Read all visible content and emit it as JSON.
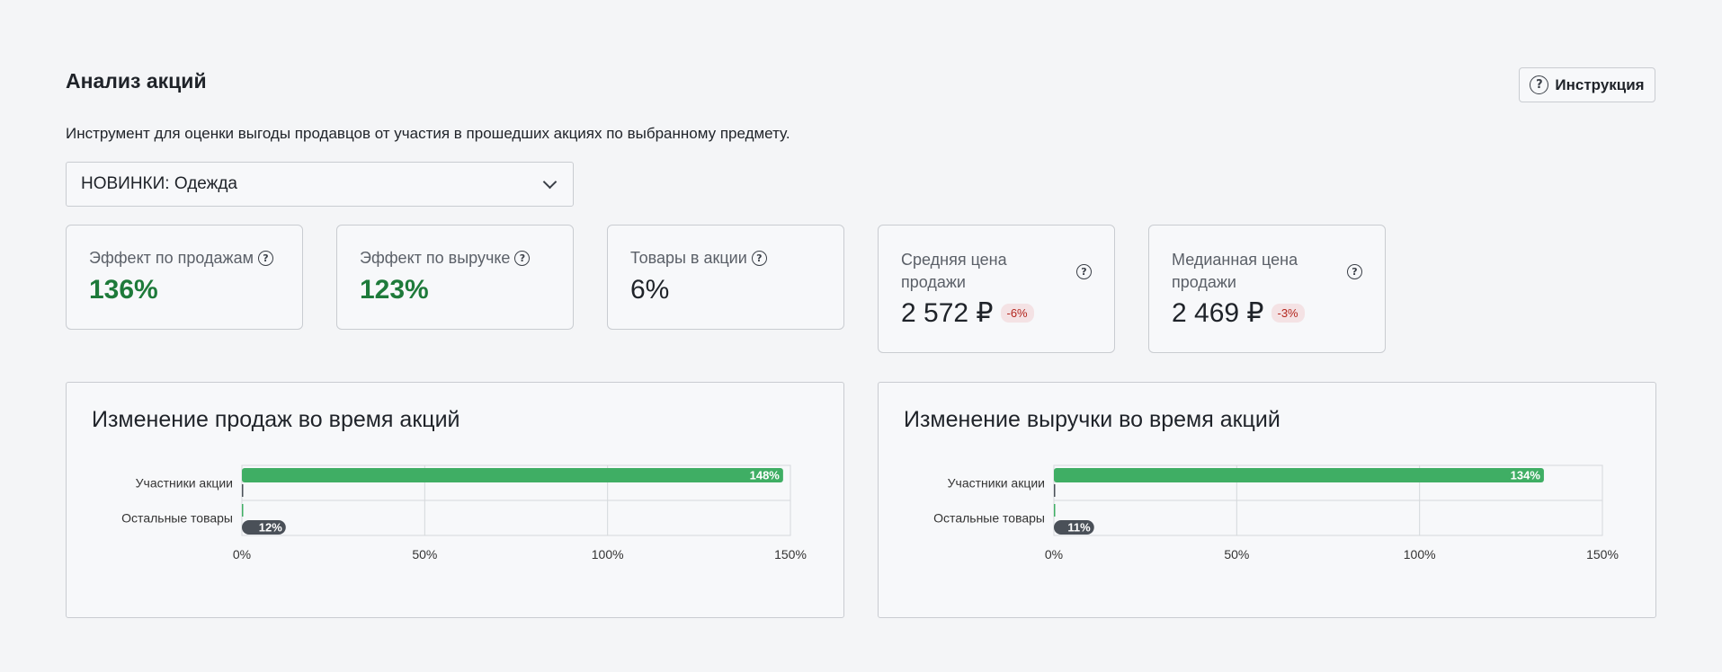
{
  "page": {
    "title": "Анализ акций",
    "help_button": "Инструкция",
    "subtitle": "Инструмент для оценки выгоды продавцов от участия в прошедших акциях по выбранному предмету.",
    "category_select": "НОВИНКИ: Одежда"
  },
  "kpis": {
    "sales_effect": {
      "label": "Эффект по продажам",
      "value": "136%"
    },
    "revenue_effect": {
      "label": "Эффект по выручке",
      "value": "123%"
    },
    "items_in_promo": {
      "label": "Товары в акции",
      "value": "6%"
    },
    "avg_price": {
      "label": "Средняя цена продажи",
      "value": "2 572 ₽",
      "delta": "-6%"
    },
    "median_price": {
      "label": "Медианная цена продажи",
      "value": "2 469 ₽",
      "delta": "-3%"
    }
  },
  "colors": {
    "green": "#3fae64",
    "dark": "#4a5058",
    "accent_green_text": "#1e7a3a",
    "badge_red": "#b3261e"
  },
  "chart_data": [
    {
      "type": "bar",
      "title": "Изменение продаж во время акций",
      "categories": [
        "Участники акции",
        "Остальные товары"
      ],
      "values": [
        148,
        12
      ],
      "value_labels": [
        "148%",
        "12%"
      ],
      "xlim": [
        0,
        150
      ],
      "x_ticks": [
        "0%",
        "50%",
        "100%",
        "150%"
      ],
      "grid": true
    },
    {
      "type": "bar",
      "title": "Изменение выручки во время акций",
      "categories": [
        "Участники акции",
        "Остальные товары"
      ],
      "values": [
        134,
        11
      ],
      "value_labels": [
        "134%",
        "11%"
      ],
      "xlim": [
        0,
        150
      ],
      "x_ticks": [
        "0%",
        "50%",
        "100%",
        "150%"
      ],
      "grid": true
    }
  ]
}
